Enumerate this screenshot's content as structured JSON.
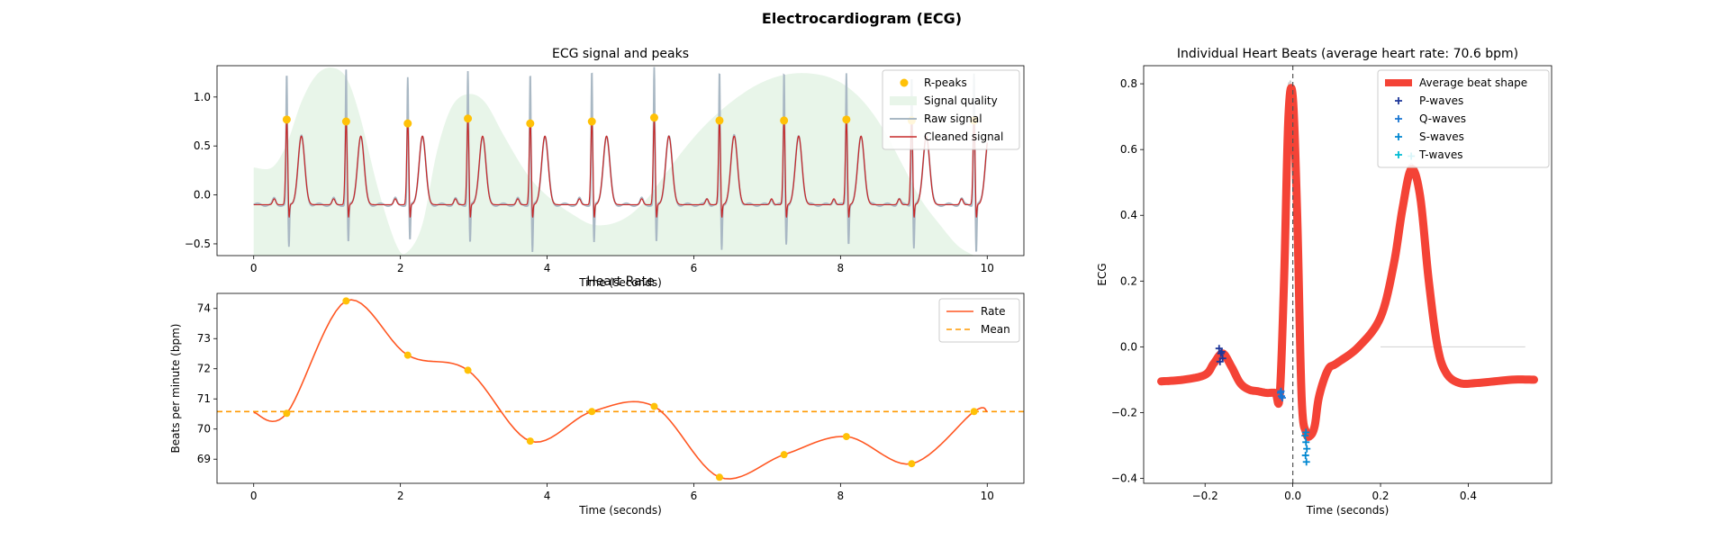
{
  "figure_title": "Electrocardiogram (ECG)",
  "colors": {
    "rpeak": "#FFC107",
    "quality_fill": "#e8f5e9",
    "raw_signal": "#a9b8c4",
    "cleaned_signal": "#c62828",
    "rate_line": "#ff5722",
    "mean_line": "#ff9800",
    "avg_beat": "#f44336",
    "individual_beats": "#c8c8c8",
    "p_waves": "#1e3799",
    "q_waves": "#1976d2",
    "s_waves": "#0288d1",
    "t_waves": "#00bcd4"
  },
  "chart_data": [
    {
      "id": "ecg",
      "type": "line",
      "title": "ECG signal and peaks",
      "xlabel": "Time (seconds)",
      "ylabel": "",
      "xlim": [
        -0.5,
        10.5
      ],
      "ylim": [
        -0.62,
        1.32
      ],
      "xticks": [
        0,
        2,
        4,
        6,
        8,
        10
      ],
      "yticks": [
        -0.5,
        0.0,
        0.5,
        1.0
      ],
      "ytick_labels": [
        "−0.5",
        "0.0",
        "0.5",
        "1.0"
      ],
      "legend": {
        "position": "top-right",
        "entries": [
          "R-peaks",
          "Signal quality",
          "Raw signal",
          "Cleaned signal"
        ]
      },
      "r_peaks": {
        "x": [
          0.45,
          1.26,
          2.1,
          2.92,
          3.77,
          4.61,
          5.46,
          6.35,
          7.23,
          8.08,
          8.97,
          9.82
        ],
        "y": [
          0.77,
          0.75,
          0.73,
          0.78,
          0.73,
          0.75,
          0.79,
          0.76,
          0.76,
          0.77,
          0.76,
          0.76
        ]
      },
      "signal_quality": {
        "x": [
          0.0,
          0.25,
          0.45,
          0.65,
          0.85,
          1.05,
          1.26,
          1.45,
          1.7,
          1.95,
          2.1,
          2.3,
          2.5,
          2.7,
          2.92,
          3.15,
          3.4,
          3.65,
          3.85,
          4.1,
          4.35,
          4.6,
          4.85,
          5.1,
          5.35,
          5.6,
          5.85,
          6.1,
          6.35,
          6.6,
          6.85,
          7.1,
          7.35,
          7.6,
          7.85,
          8.1,
          8.35,
          8.6,
          8.85,
          9.1,
          9.35,
          9.6,
          9.82
        ],
        "y": [
          0.28,
          0.28,
          0.52,
          0.95,
          1.22,
          1.3,
          1.2,
          0.8,
          0.05,
          -0.52,
          -0.58,
          -0.3,
          0.45,
          0.9,
          1.03,
          0.95,
          0.62,
          0.3,
          0.1,
          -0.07,
          -0.2,
          -0.3,
          -0.3,
          -0.22,
          -0.05,
          0.2,
          0.45,
          0.67,
          0.85,
          1.0,
          1.12,
          1.2,
          1.24,
          1.24,
          1.2,
          1.1,
          0.92,
          0.65,
          0.3,
          -0.05,
          -0.3,
          -0.52,
          -0.62
        ]
      },
      "raw_signal": {
        "spike_heights": [
          1.23,
          1.28,
          1.2,
          1.27,
          1.24,
          1.27,
          1.3,
          1.25,
          1.26,
          1.25,
          1.22,
          1.25
        ],
        "spike_troughs": [
          -0.55,
          -0.5,
          -0.48,
          -0.5,
          -0.6,
          -0.5,
          -0.5,
          -0.57,
          -0.5,
          -0.5,
          -0.55,
          -0.6
        ]
      },
      "cleaned_signal": {
        "baseline": -0.1,
        "r_amplitude": 0.76,
        "t_amplitude": 0.6
      }
    },
    {
      "id": "rate",
      "type": "line",
      "title": "Heart Rate",
      "xlabel": "Time (seconds)",
      "ylabel": "Beats per minute (bpm)",
      "xlim": [
        -0.5,
        10.5
      ],
      "ylim": [
        68.2,
        74.5
      ],
      "xticks": [
        0,
        2,
        4,
        6,
        8,
        10
      ],
      "yticks": [
        69,
        70,
        71,
        72,
        73,
        74
      ],
      "legend": {
        "position": "top-right",
        "entries": [
          "Rate",
          "Mean"
        ]
      },
      "series": [
        {
          "name": "Rate",
          "x": [
            0.0,
            0.45,
            1.26,
            2.1,
            2.92,
            3.77,
            4.61,
            5.46,
            6.35,
            7.23,
            8.08,
            8.97,
            9.82,
            10.0
          ],
          "y": [
            70.55,
            70.52,
            74.25,
            72.45,
            71.95,
            69.6,
            70.58,
            70.75,
            68.4,
            69.15,
            69.75,
            68.85,
            70.58,
            70.58
          ]
        }
      ],
      "peak_markers": {
        "x": [
          0.45,
          1.26,
          2.1,
          2.92,
          3.77,
          4.61,
          5.46,
          6.35,
          7.23,
          8.08,
          8.97,
          9.82
        ],
        "y": [
          70.52,
          74.25,
          72.45,
          71.95,
          69.6,
          70.58,
          70.75,
          68.4,
          69.15,
          69.75,
          68.85,
          70.58
        ]
      },
      "mean": 70.58
    },
    {
      "id": "beats",
      "type": "line",
      "title": "Individual Heart Beats (average heart rate: 70.6 bpm)",
      "xlabel": "Time (seconds)",
      "ylabel": "ECG",
      "xlim": [
        -0.34,
        0.59
      ],
      "ylim": [
        -0.415,
        0.855
      ],
      "xticks": [
        -0.2,
        0.0,
        0.2,
        0.4
      ],
      "xtick_labels": [
        "−0.2",
        "0.0",
        "0.2",
        "0.4"
      ],
      "yticks": [
        -0.4,
        -0.2,
        0.0,
        0.2,
        0.4,
        0.6,
        0.8
      ],
      "ytick_labels": [
        "−0.4",
        "−0.2",
        "0.0",
        "0.2",
        "0.4",
        "0.6",
        "0.8"
      ],
      "legend": {
        "position": "top-right",
        "entries": [
          "Average beat shape",
          "P-waves",
          "Q-waves",
          "S-waves",
          "T-waves"
        ]
      },
      "average_beat": {
        "x": [
          -0.3,
          -0.25,
          -0.2,
          -0.18,
          -0.16,
          -0.14,
          -0.12,
          -0.1,
          -0.08,
          -0.06,
          -0.04,
          -0.03,
          -0.02,
          -0.01,
          0.0,
          0.01,
          0.02,
          0.03,
          0.04,
          0.05,
          0.06,
          0.08,
          0.1,
          0.15,
          0.2,
          0.23,
          0.25,
          0.27,
          0.29,
          0.31,
          0.33,
          0.35,
          0.38,
          0.42,
          0.5,
          0.55
        ],
        "y": [
          -0.105,
          -0.1,
          -0.085,
          -0.05,
          -0.02,
          -0.06,
          -0.11,
          -0.13,
          -0.135,
          -0.14,
          -0.14,
          -0.15,
          0.2,
          0.7,
          0.76,
          0.4,
          -0.15,
          -0.26,
          -0.27,
          -0.24,
          -0.15,
          -0.07,
          -0.05,
          0.0,
          0.09,
          0.25,
          0.42,
          0.54,
          0.46,
          0.2,
          0.0,
          -0.08,
          -0.11,
          -0.11,
          -0.1,
          -0.1
        ]
      },
      "p_waves": {
        "x": [
          -0.168,
          -0.164,
          -0.16,
          -0.166,
          -0.162
        ],
        "y": [
          -0.005,
          -0.02,
          -0.035,
          -0.045,
          -0.015
        ]
      },
      "q_waves": {
        "x": [
          -0.028,
          -0.026,
          -0.024,
          -0.027
        ],
        "y": [
          -0.14,
          -0.15,
          -0.155,
          -0.135
        ]
      },
      "s_waves": {
        "x": [
          0.028,
          0.03,
          0.032,
          0.029,
          0.031,
          0.03
        ],
        "y": [
          -0.27,
          -0.29,
          -0.31,
          -0.33,
          -0.35,
          -0.26
        ]
      },
      "t_waves": {
        "x": [
          0.27
        ],
        "y": [
          0.58
        ]
      },
      "reference_line_x": 0.0
    }
  ]
}
